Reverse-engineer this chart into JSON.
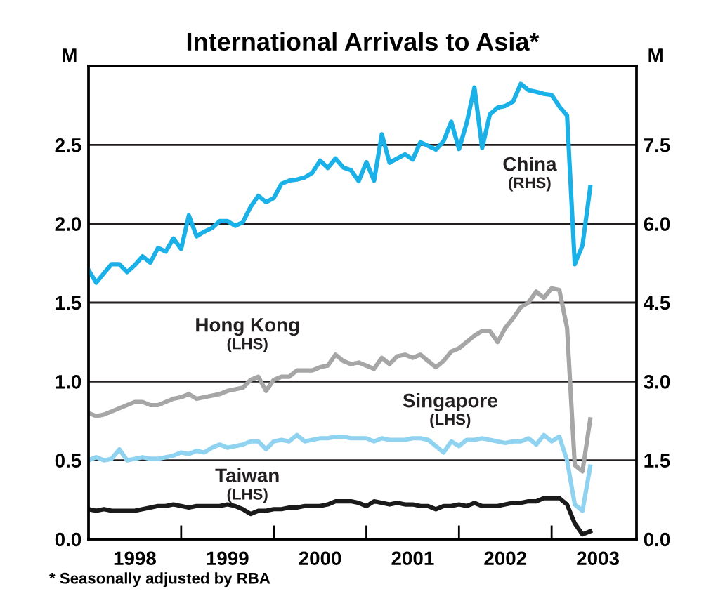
{
  "chart_data": {
    "type": "line",
    "title": "International Arrivals to Asia*",
    "ylabel": "M",
    "y2label": "M",
    "x": [
      "1998-01",
      "1998-02",
      "1998-03",
      "1998-04",
      "1998-05",
      "1998-06",
      "1998-07",
      "1998-08",
      "1998-09",
      "1998-10",
      "1998-11",
      "1998-12",
      "1999-01",
      "1999-02",
      "1999-03",
      "1999-04",
      "1999-05",
      "1999-06",
      "1999-07",
      "1999-08",
      "1999-09",
      "1999-10",
      "1999-11",
      "1999-12",
      "2000-01",
      "2000-02",
      "2000-03",
      "2000-04",
      "2000-05",
      "2000-06",
      "2000-07",
      "2000-08",
      "2000-09",
      "2000-10",
      "2000-11",
      "2000-12",
      "2001-01",
      "2001-02",
      "2001-03",
      "2001-04",
      "2001-05",
      "2001-06",
      "2001-07",
      "2001-08",
      "2001-09",
      "2001-10",
      "2001-11",
      "2001-12",
      "2002-01",
      "2002-02",
      "2002-03",
      "2002-04",
      "2002-05",
      "2002-06",
      "2002-07",
      "2002-08",
      "2002-09",
      "2002-10",
      "2002-11",
      "2002-12",
      "2003-01",
      "2003-02",
      "2003-03",
      "2003-04",
      "2003-05",
      "2003-06"
    ],
    "series": [
      {
        "name": "China",
        "color": "#1ab0e8",
        "axis": "y2",
        "values": [
          5.12,
          4.88,
          5.06,
          5.23,
          5.23,
          5.08,
          5.21,
          5.38,
          5.26,
          5.54,
          5.47,
          5.72,
          5.52,
          6.16,
          5.76,
          5.85,
          5.92,
          6.05,
          6.05,
          5.96,
          6.03,
          6.32,
          6.53,
          6.41,
          6.49,
          6.76,
          6.82,
          6.84,
          6.88,
          6.97,
          7.2,
          7.06,
          7.24,
          7.07,
          7.02,
          6.81,
          7.17,
          6.82,
          7.7,
          7.16,
          7.24,
          7.32,
          7.22,
          7.55,
          7.48,
          7.41,
          7.57,
          7.94,
          7.42,
          7.92,
          8.59,
          7.44,
          8.08,
          8.21,
          8.24,
          8.32,
          8.66,
          8.54,
          8.51,
          8.47,
          8.45,
          8.23,
          8.06,
          5.23,
          5.59,
          6.69
        ]
      },
      {
        "name": "Hong Kong",
        "color": "#a6a6a6",
        "values": [
          0.8,
          0.78,
          0.79,
          0.81,
          0.83,
          0.85,
          0.87,
          0.87,
          0.85,
          0.85,
          0.87,
          0.89,
          0.9,
          0.92,
          0.89,
          0.9,
          0.91,
          0.92,
          0.94,
          0.95,
          0.96,
          1.01,
          1.03,
          0.94,
          1.01,
          1.03,
          1.03,
          1.07,
          1.07,
          1.07,
          1.09,
          1.1,
          1.17,
          1.13,
          1.11,
          1.12,
          1.1,
          1.08,
          1.15,
          1.11,
          1.16,
          1.17,
          1.15,
          1.17,
          1.13,
          1.09,
          1.13,
          1.19,
          1.21,
          1.25,
          1.29,
          1.32,
          1.32,
          1.25,
          1.34,
          1.4,
          1.47,
          1.5,
          1.57,
          1.53,
          1.59,
          1.58,
          1.34,
          0.47,
          0.43,
          0.76
        ]
      },
      {
        "name": "Singapore",
        "color": "#8fd3f0",
        "values": [
          0.5,
          0.52,
          0.5,
          0.51,
          0.57,
          0.5,
          0.51,
          0.52,
          0.51,
          0.51,
          0.52,
          0.53,
          0.55,
          0.54,
          0.56,
          0.55,
          0.58,
          0.6,
          0.58,
          0.59,
          0.6,
          0.62,
          0.62,
          0.57,
          0.62,
          0.63,
          0.62,
          0.66,
          0.62,
          0.63,
          0.64,
          0.64,
          0.65,
          0.65,
          0.64,
          0.64,
          0.64,
          0.62,
          0.64,
          0.63,
          0.63,
          0.63,
          0.64,
          0.64,
          0.63,
          0.59,
          0.55,
          0.62,
          0.59,
          0.63,
          0.63,
          0.64,
          0.63,
          0.62,
          0.61,
          0.62,
          0.62,
          0.64,
          0.6,
          0.66,
          0.62,
          0.65,
          0.5,
          0.22,
          0.18,
          0.46
        ]
      },
      {
        "name": "Taiwan",
        "color": "#1a1a1a",
        "values": [
          0.19,
          0.18,
          0.19,
          0.18,
          0.18,
          0.18,
          0.18,
          0.19,
          0.2,
          0.21,
          0.21,
          0.22,
          0.21,
          0.2,
          0.21,
          0.21,
          0.21,
          0.21,
          0.22,
          0.21,
          0.19,
          0.16,
          0.18,
          0.18,
          0.19,
          0.19,
          0.2,
          0.2,
          0.21,
          0.21,
          0.21,
          0.22,
          0.24,
          0.24,
          0.24,
          0.23,
          0.21,
          0.24,
          0.23,
          0.22,
          0.23,
          0.22,
          0.22,
          0.21,
          0.21,
          0.19,
          0.21,
          0.21,
          0.22,
          0.21,
          0.23,
          0.21,
          0.21,
          0.21,
          0.22,
          0.23,
          0.23,
          0.24,
          0.24,
          0.26,
          0.26,
          0.26,
          0.22,
          0.1,
          0.03,
          0.05
        ]
      }
    ],
    "xlim": [
      "1998-01",
      "2003-12"
    ],
    "xticks": [
      {
        "value": "1998-07",
        "label": "1998"
      },
      {
        "value": "1999-01",
        "label": null
      },
      {
        "value": "1999-07",
        "label": "1999"
      },
      {
        "value": "2000-01",
        "label": null
      },
      {
        "value": "2000-07",
        "label": "2000"
      },
      {
        "value": "2001-01",
        "label": null
      },
      {
        "value": "2001-07",
        "label": "2001"
      },
      {
        "value": "2002-01",
        "label": null
      },
      {
        "value": "2002-07",
        "label": "2002"
      },
      {
        "value": "2003-01",
        "label": null
      },
      {
        "value": "2003-07",
        "label": "2003"
      }
    ],
    "ylim": [
      0,
      3
    ],
    "yticks": [
      {
        "value": 0,
        "label": "0.0"
      },
      {
        "value": 0.5,
        "label": "0.5"
      },
      {
        "value": 1,
        "label": "1.0"
      },
      {
        "value": 1.5,
        "label": "1.5"
      },
      {
        "value": 2,
        "label": "2.0"
      },
      {
        "value": 2.5,
        "label": "2.5"
      }
    ],
    "y2lim": [
      0,
      9
    ],
    "y2ticks": [
      {
        "value": 0,
        "label": "0.0"
      },
      {
        "value": 1.5,
        "label": "1.5"
      },
      {
        "value": 3,
        "label": "3.0"
      },
      {
        "value": 4.5,
        "label": "4.5"
      },
      {
        "value": 6,
        "label": "6.0"
      },
      {
        "value": 7.5,
        "label": "7.5"
      }
    ],
    "grid": "y",
    "legend": false,
    "line_style": "solid",
    "annotations": [
      "(RHS)",
      "(LHS)",
      "(LHS)",
      "(LHS)",
      "* Seasonally adjusted by RBA"
    ]
  }
}
